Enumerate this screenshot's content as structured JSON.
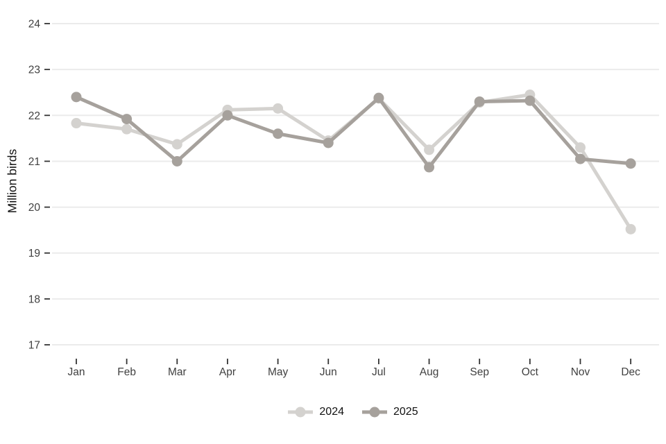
{
  "chart_data": {
    "type": "line",
    "title": "",
    "xlabel": "",
    "ylabel": "Million birds",
    "categories": [
      "Jan",
      "Feb",
      "Mar",
      "Apr",
      "May",
      "Jun",
      "Jul",
      "Aug",
      "Sep",
      "Oct",
      "Nov",
      "Dec"
    ],
    "series": [
      {
        "name": "2024",
        "color": "#d4d2cf",
        "values": [
          21.83,
          21.7,
          21.37,
          22.12,
          22.15,
          21.45,
          22.37,
          21.25,
          22.28,
          22.45,
          21.3,
          19.52
        ]
      },
      {
        "name": "2025",
        "color": "#a6a19c",
        "values": [
          22.4,
          21.92,
          21.0,
          22.0,
          21.6,
          21.4,
          22.38,
          20.87,
          22.3,
          22.32,
          21.05,
          20.95
        ]
      }
    ],
    "ylim": [
      17,
      24
    ],
    "yticks": [
      17,
      18,
      19,
      20,
      21,
      22,
      23,
      24
    ],
    "grid": "horizontal",
    "legend_position": "bottom"
  },
  "colors": {
    "background": "#ffffff",
    "gridline": "#ebebeb",
    "tick_mark": "#333333",
    "tick_label": "#404040",
    "axis_title": "#111111"
  }
}
